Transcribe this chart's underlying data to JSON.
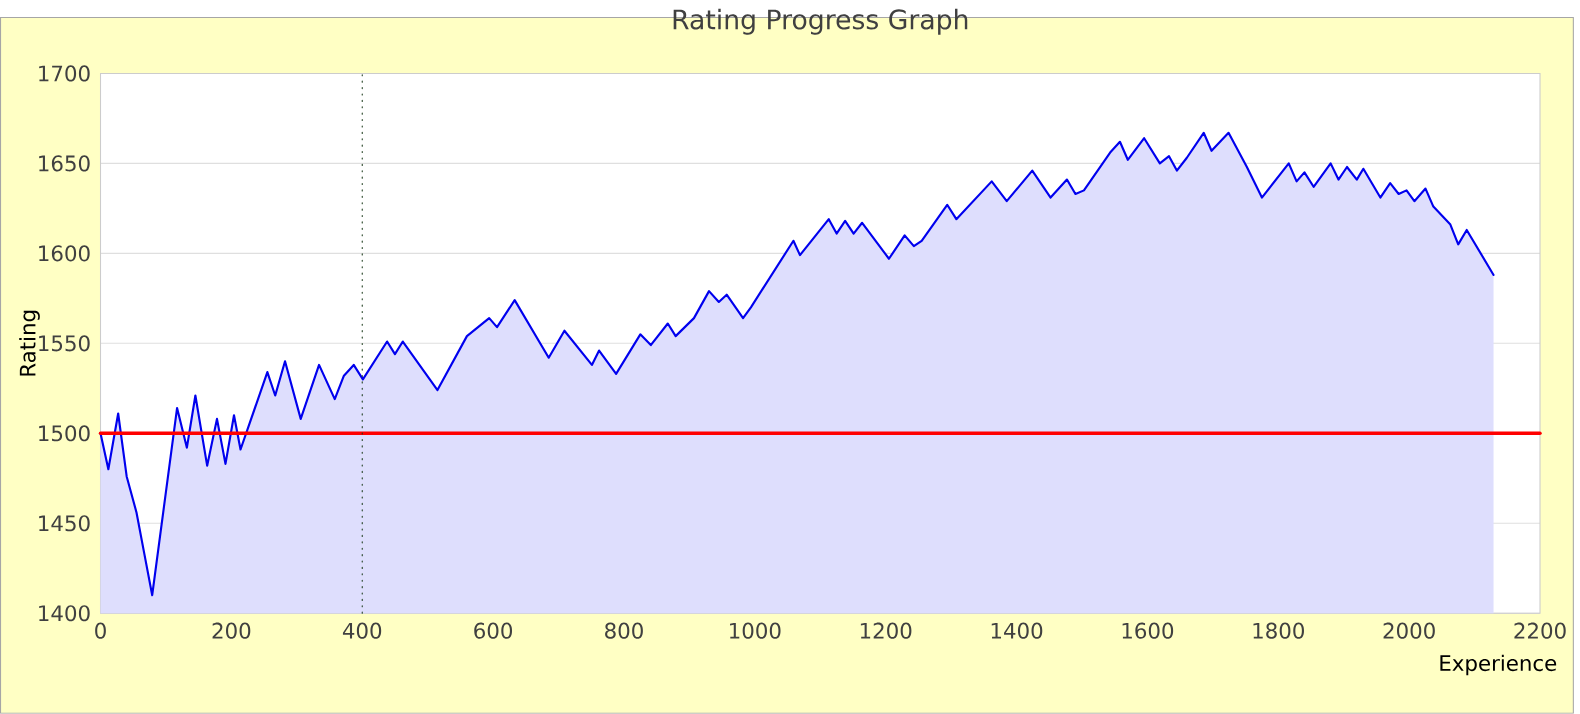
{
  "chart_data": {
    "type": "area",
    "title": "Rating Progress Graph",
    "xlabel": "Experience",
    "ylabel": "Rating",
    "xlim": [
      0,
      2200
    ],
    "ylim": [
      1400,
      1700
    ],
    "xticks": [
      0,
      200,
      400,
      600,
      800,
      1000,
      1200,
      1400,
      1600,
      1800,
      2000,
      2200
    ],
    "yticks": [
      1400,
      1450,
      1500,
      1550,
      1600,
      1650,
      1700
    ],
    "grid": "y",
    "marker": "none",
    "line_style": "solid",
    "ref_lines": [
      {
        "axis": "y",
        "value": 1500,
        "color": "#ff0000",
        "line_style": "solid"
      },
      {
        "axis": "x",
        "value": 400,
        "color": "#1a3a1a",
        "line_style": "dotted"
      }
    ],
    "series": [
      {
        "color": "#0000ee",
        "x": [
          0,
          12,
          27,
          40,
          55,
          67,
          79,
          117,
          132,
          145,
          163,
          178,
          191,
          204,
          214,
          255,
          267,
          282,
          306,
          334,
          358,
          372,
          387,
          401,
          438,
          450,
          462,
          515,
          560,
          594,
          606,
          633,
          685,
          709,
          751,
          762,
          788,
          825,
          841,
          867,
          879,
          907,
          930,
          945,
          957,
          982,
          994,
          1059,
          1069,
          1113,
          1125,
          1138,
          1151,
          1164,
          1205,
          1229,
          1243,
          1255,
          1294,
          1308,
          1362,
          1385,
          1424,
          1452,
          1477,
          1490,
          1503,
          1543,
          1558,
          1570,
          1595,
          1619,
          1633,
          1645,
          1660,
          1686,
          1698,
          1724,
          1752,
          1775,
          1816,
          1828,
          1840,
          1854,
          1880,
          1892,
          1905,
          1920,
          1930,
          1956,
          1971,
          1984,
          1996,
          2008,
          2025,
          2037,
          2063,
          2075,
          2088,
          2129
        ],
        "values": [
          1500,
          1480,
          1511,
          1476,
          1456,
          1433,
          1410,
          1514,
          1492,
          1521,
          1482,
          1508,
          1483,
          1510,
          1491,
          1534,
          1521,
          1540,
          1508,
          1538,
          1519,
          1532,
          1538,
          1530,
          1551,
          1544,
          1551,
          1524,
          1554,
          1564,
          1559,
          1574,
          1542,
          1557,
          1538,
          1546,
          1533,
          1555,
          1549,
          1561,
          1554,
          1564,
          1579,
          1573,
          1577,
          1564,
          1570,
          1607,
          1599,
          1619,
          1611,
          1618,
          1611,
          1617,
          1597,
          1610,
          1604,
          1607,
          1627,
          1619,
          1640,
          1629,
          1646,
          1631,
          1641,
          1633,
          1635,
          1656,
          1662,
          1652,
          1664,
          1650,
          1654,
          1646,
          1653,
          1667,
          1657,
          1667,
          1648,
          1631,
          1650,
          1640,
          1645,
          1637,
          1650,
          1641,
          1648,
          1641,
          1647,
          1631,
          1639,
          1633,
          1635,
          1629,
          1636,
          1626,
          1616,
          1605,
          1613,
          1588
        ]
      }
    ]
  }
}
